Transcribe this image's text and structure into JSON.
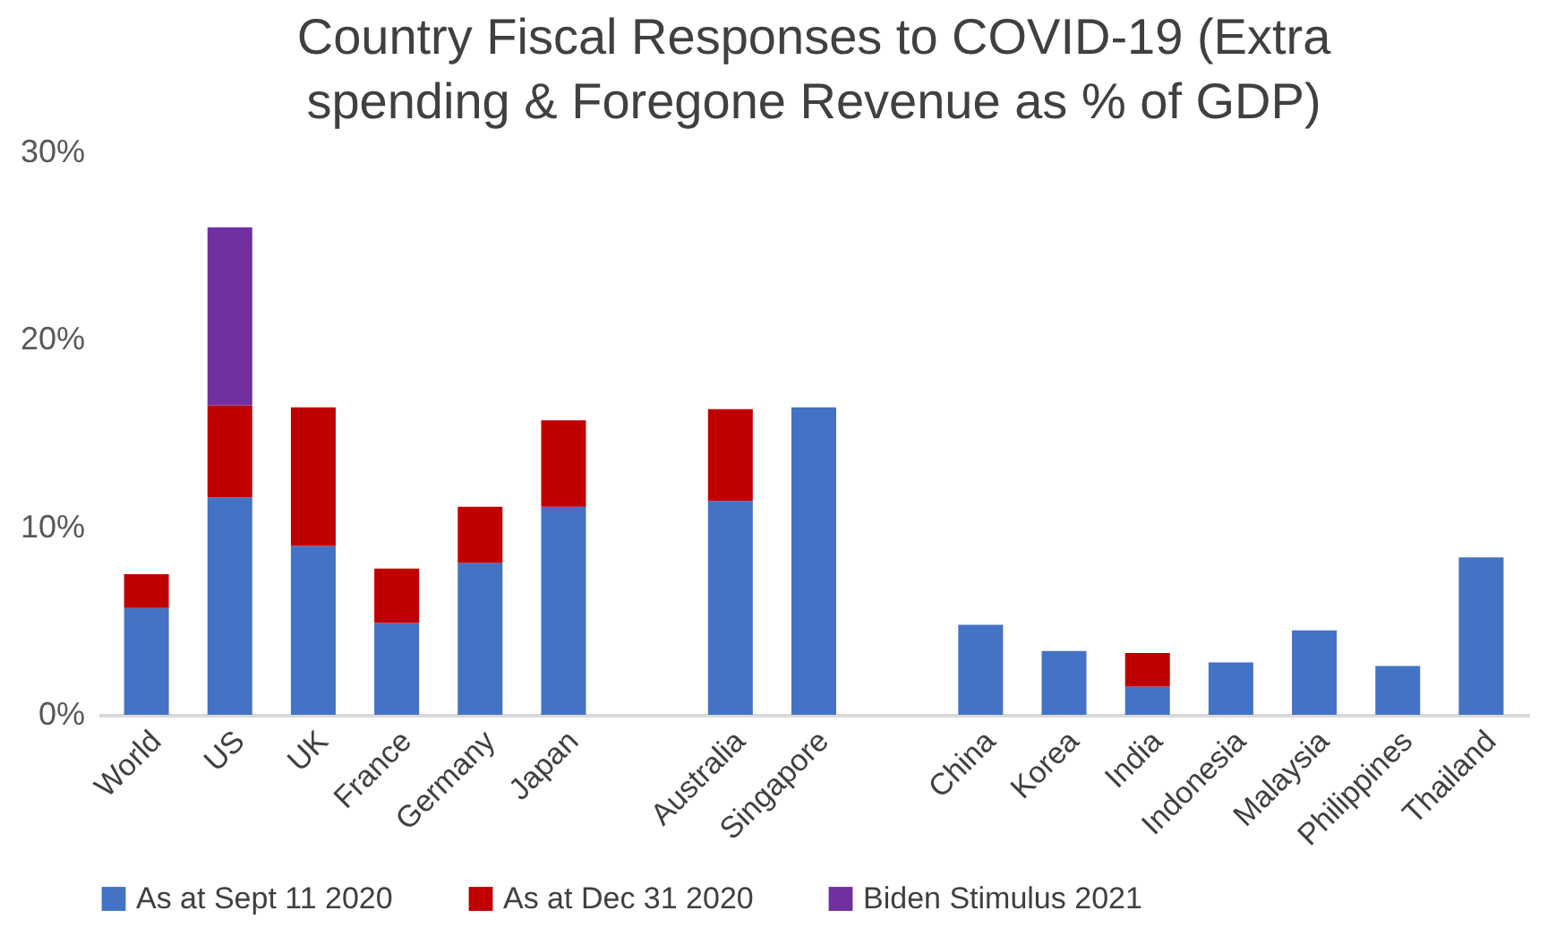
{
  "chart_data": {
    "type": "bar",
    "title": "Country Fiscal Responses to COVID-19 (Extra spending & Foregone Revenue as % of GDP)",
    "categories": [
      "World",
      "US",
      "UK",
      "France",
      "Germany",
      "Japan",
      null,
      "Australia",
      "Singapore",
      null,
      "China",
      "Korea",
      "India",
      "Indonesia",
      "Malaysia",
      "Philippines",
      "Thailand"
    ],
    "stacked": true,
    "series": [
      {
        "name": "As at Sept 11 2020",
        "color": "#4472c4",
        "values": [
          5.7,
          11.6,
          9.0,
          4.9,
          8.1,
          11.1,
          null,
          11.4,
          16.4,
          null,
          4.8,
          3.4,
          1.5,
          2.8,
          4.5,
          2.6,
          8.4
        ]
      },
      {
        "name": "As at Dec 31 2020",
        "color": "#c00000",
        "values": [
          1.8,
          4.9,
          7.4,
          2.9,
          3.0,
          4.6,
          null,
          4.9,
          null,
          null,
          null,
          null,
          1.8,
          null,
          null,
          null,
          null
        ]
      },
      {
        "name": "Biden Stimulus 2021",
        "color": "#7030a0",
        "values": [
          null,
          9.5,
          null,
          null,
          null,
          null,
          null,
          null,
          null,
          null,
          null,
          null,
          null,
          null,
          null,
          null,
          null
        ]
      }
    ],
    "ylim": [
      0,
      30
    ],
    "yticks": [
      {
        "value": 0,
        "label": "0%"
      },
      {
        "value": 10,
        "label": "10%"
      },
      {
        "value": 20,
        "label": "20%"
      },
      {
        "value": 30,
        "label": "30%"
      }
    ],
    "grid": false,
    "legend": "bottom"
  }
}
